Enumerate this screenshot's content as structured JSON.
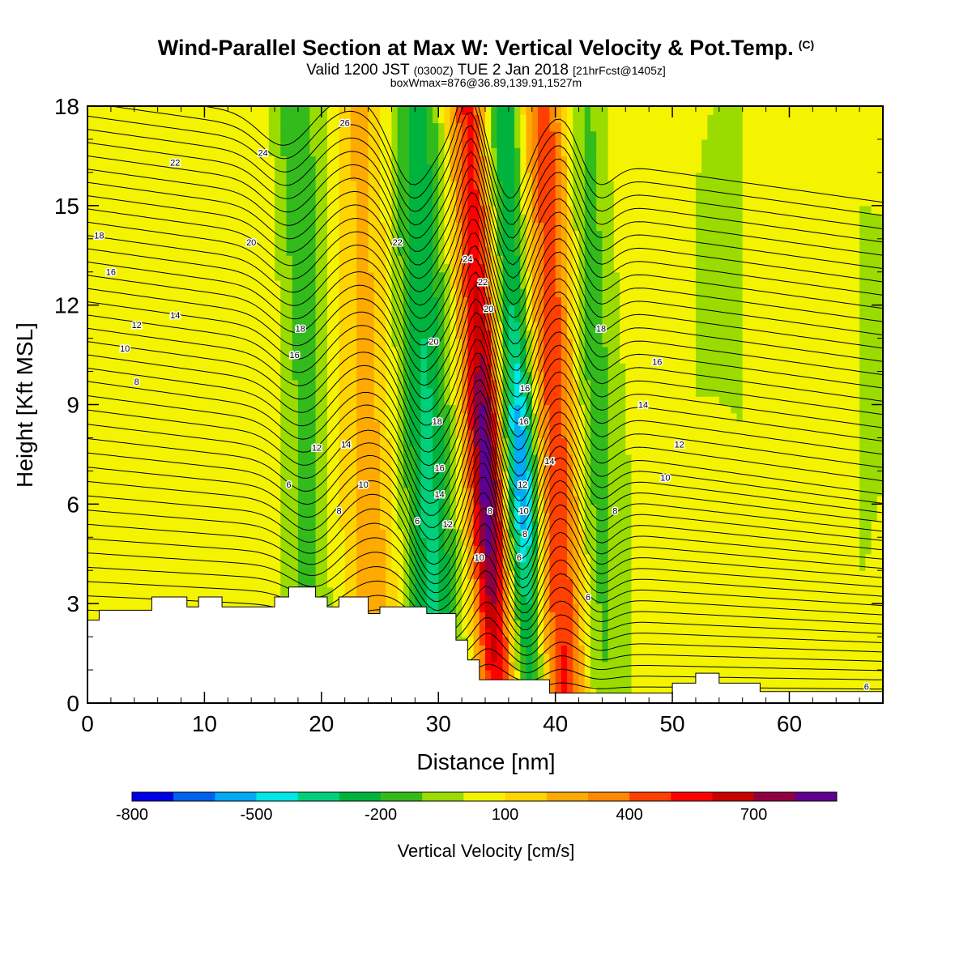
{
  "header": {
    "title": "Wind-Parallel Section at Max W: Vertical Velocity & Pot.Temp.",
    "copyright": "(C)",
    "valid_prefix": "Valid 1200 JST",
    "valid_utc": "(0300Z)",
    "valid_date": "TUE 2 Jan 2018",
    "valid_forecast": "[21hrFcst@1405z]",
    "box_info": "boxWmax=876@36.89,139.91,1527m"
  },
  "colorbar": {
    "label": "Vertical Velocity [cm/s]",
    "tick_labels": [
      "-800",
      "-500",
      "-200",
      "100",
      "400",
      "700"
    ],
    "colors": [
      "#0000e6",
      "#0060f0",
      "#00aaf5",
      "#00e5e5",
      "#00d07a",
      "#00b33c",
      "#33bb1c",
      "#9bdc00",
      "#f4f400",
      "#ffd400",
      "#ffaa00",
      "#ff8800",
      "#ff4000",
      "#ff0000",
      "#c80000",
      "#900040",
      "#600090"
    ]
  },
  "chart_data": {
    "type": "heatmap",
    "title": "Wind-Parallel Section at Max W: Vertical Velocity & Pot.Temp.",
    "xlabel": "Distance [nm]",
    "ylabel": "Height [Kft MSL]",
    "xlim": [
      0,
      68
    ],
    "ylim": [
      0,
      18
    ],
    "xticks": [
      0,
      10,
      20,
      30,
      40,
      50,
      60
    ],
    "yticks": [
      0,
      3,
      6,
      9,
      12,
      15,
      18
    ],
    "fill_variable": "Vertical Velocity [cm/s]",
    "contour_variable": "Potential Temperature",
    "velocity_bands": [
      {
        "x_center": 18.5,
        "w": -220,
        "description": "downdraft band tilted toward higher x aloft"
      },
      {
        "x_center": 24,
        "w": 200,
        "description": "updraft band"
      },
      {
        "x_center": 29,
        "w": -350,
        "description": "downdraft band"
      },
      {
        "x_center": 33.8,
        "w": 800,
        "description": "strongest updraft core near 3-9 kft"
      },
      {
        "x_center": 36.8,
        "w": -750,
        "description": "strongest downdraft core near 5-9 kft"
      },
      {
        "x_center": 40,
        "w": 450,
        "description": "updraft band"
      },
      {
        "x_center": 43,
        "w": -200,
        "description": "downdraft band"
      }
    ],
    "contour_labels": [
      {
        "text": "26",
        "x": 22,
        "y": 17.5
      },
      {
        "text": "24",
        "x": 15,
        "y": 16.6
      },
      {
        "text": "22",
        "x": 7.5,
        "y": 16.3
      },
      {
        "text": "18",
        "x": 1,
        "y": 14.1
      },
      {
        "text": "20",
        "x": 14,
        "y": 13.9
      },
      {
        "text": "22",
        "x": 26.5,
        "y": 13.9
      },
      {
        "text": "24",
        "x": 32.5,
        "y": 13.4
      },
      {
        "text": "16",
        "x": 2,
        "y": 13.0
      },
      {
        "text": "22",
        "x": 33.8,
        "y": 12.7
      },
      {
        "text": "20",
        "x": 34.3,
        "y": 11.9
      },
      {
        "text": "14",
        "x": 7.5,
        "y": 11.7
      },
      {
        "text": "12",
        "x": 4.2,
        "y": 11.4
      },
      {
        "text": "18",
        "x": 18.2,
        "y": 11.3
      },
      {
        "text": "18",
        "x": 43.9,
        "y": 11.3
      },
      {
        "text": "20",
        "x": 29.6,
        "y": 10.9
      },
      {
        "text": "10",
        "x": 3.2,
        "y": 10.7
      },
      {
        "text": "16",
        "x": 17.7,
        "y": 10.5
      },
      {
        "text": "16",
        "x": 48.7,
        "y": 10.3
      },
      {
        "text": "8",
        "x": 4.2,
        "y": 9.7
      },
      {
        "text": "16",
        "x": 37.4,
        "y": 9.5
      },
      {
        "text": "14",
        "x": 47.5,
        "y": 9.0
      },
      {
        "text": "18",
        "x": 29.9,
        "y": 8.5
      },
      {
        "text": "16",
        "x": 37.3,
        "y": 8.5
      },
      {
        "text": "14",
        "x": 22.1,
        "y": 7.8
      },
      {
        "text": "12",
        "x": 50.6,
        "y": 7.8
      },
      {
        "text": "12",
        "x": 19.6,
        "y": 7.7
      },
      {
        "text": "14",
        "x": 39.5,
        "y": 7.3
      },
      {
        "text": "16",
        "x": 30.1,
        "y": 7.1
      },
      {
        "text": "10",
        "x": 49.4,
        "y": 6.8
      },
      {
        "text": "6",
        "x": 17.2,
        "y": 6.6
      },
      {
        "text": "10",
        "x": 23.6,
        "y": 6.6
      },
      {
        "text": "12",
        "x": 37.2,
        "y": 6.6
      },
      {
        "text": "14",
        "x": 30.1,
        "y": 6.3
      },
      {
        "text": "8",
        "x": 21.5,
        "y": 5.8
      },
      {
        "text": "8",
        "x": 34.4,
        "y": 5.8
      },
      {
        "text": "10",
        "x": 37.3,
        "y": 5.8
      },
      {
        "text": "8",
        "x": 45.1,
        "y": 5.8
      },
      {
        "text": "6",
        "x": 28.2,
        "y": 5.5
      },
      {
        "text": "12",
        "x": 30.8,
        "y": 5.4
      },
      {
        "text": "8",
        "x": 37.4,
        "y": 5.1
      },
      {
        "text": "10",
        "x": 33.5,
        "y": 4.4
      },
      {
        "text": "6",
        "x": 36.9,
        "y": 4.4
      },
      {
        "text": "6",
        "x": 42.8,
        "y": 3.2
      },
      {
        "text": "6",
        "x": 66.6,
        "y": 0.5
      }
    ],
    "terrain_profile": [
      [
        0,
        2.5
      ],
      [
        1,
        2.8
      ],
      [
        5.5,
        3.2
      ],
      [
        8.5,
        2.9
      ],
      [
        9.5,
        3.2
      ],
      [
        11.5,
        2.9
      ],
      [
        15,
        2.9
      ],
      [
        16,
        3.2
      ],
      [
        17.2,
        3.5
      ],
      [
        19.5,
        3.2
      ],
      [
        20.5,
        2.9
      ],
      [
        21.5,
        3.2
      ],
      [
        24,
        2.7
      ],
      [
        25,
        2.9
      ],
      [
        29,
        2.7
      ],
      [
        31.5,
        1.9
      ],
      [
        32.5,
        1.3
      ],
      [
        33.5,
        0.7
      ],
      [
        38,
        0.7
      ],
      [
        39.5,
        0.3
      ],
      [
        48.5,
        0.3
      ],
      [
        50,
        0.6
      ],
      [
        52,
        0.9
      ],
      [
        54,
        0.6
      ],
      [
        57.5,
        0.35
      ],
      [
        68,
        0.35
      ]
    ]
  }
}
